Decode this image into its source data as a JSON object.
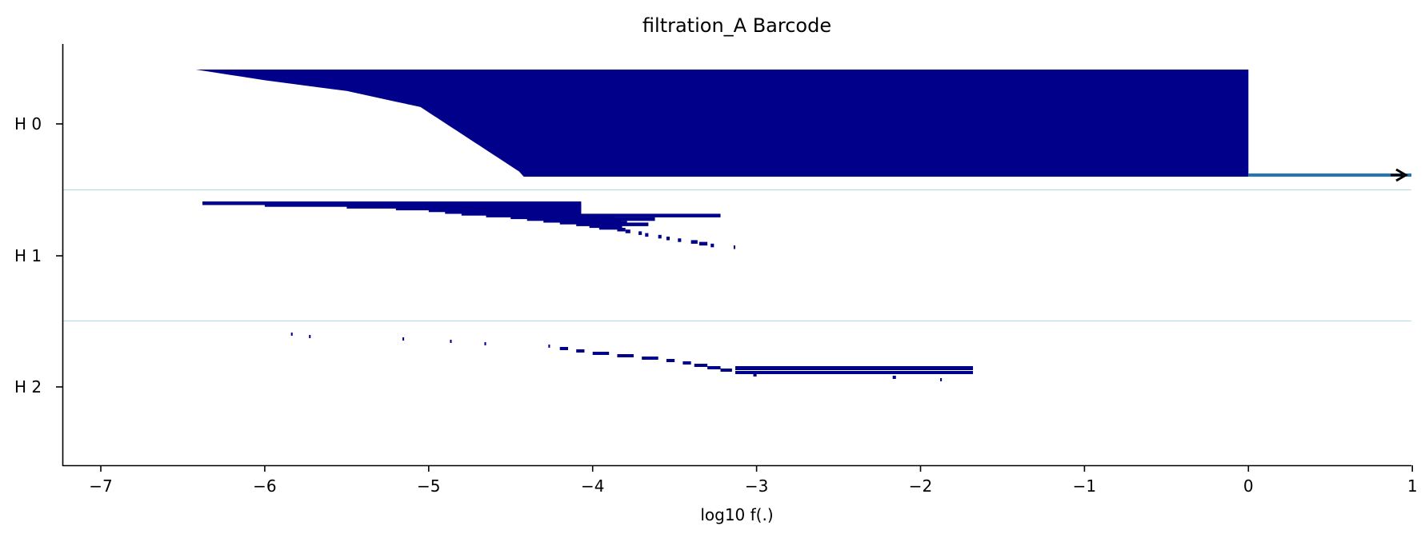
{
  "chart_data": {
    "type": "barcode",
    "title": "filtration_A Barcode",
    "xlabel": "log10 f(.)",
    "xlim": [
      -7.23,
      1.0
    ],
    "xticks": [
      -7,
      -6,
      -5,
      -4,
      -3,
      -2,
      -1,
      0,
      1
    ],
    "xtick_labels": [
      "−7",
      "−6",
      "−5",
      "−4",
      "−3",
      "−2",
      "−1",
      "0",
      "1"
    ],
    "dimension_labels": [
      "H 0",
      "H 1",
      "H 2"
    ],
    "bar_color": "#00008b",
    "infinite_bar_color": "#1f77b4",
    "separator_color": "#add8e6",
    "infinite_bar": {
      "dimension": "H 0",
      "birth": 0.0,
      "death": "inf"
    },
    "H0": {
      "bar_count_approx": 1000,
      "death": 0.0,
      "birth_profile": [
        [
          0.0,
          -6.42
        ],
        [
          0.1,
          -6.0
        ],
        [
          0.2,
          -5.5
        ],
        [
          0.35,
          -5.05
        ],
        [
          0.5,
          -4.9
        ],
        [
          0.7,
          -4.7
        ],
        [
          0.85,
          -4.55
        ],
        [
          0.95,
          -4.45
        ],
        [
          1.0,
          -4.42
        ]
      ]
    },
    "H1": {
      "bars": [
        {
          "birth": -6.38,
          "death": -4.07
        },
        {
          "birth": -6.0,
          "death": -4.07
        },
        {
          "birth": -5.5,
          "death": -4.07
        },
        {
          "birth": -5.2,
          "death": -4.07
        },
        {
          "birth": -5.0,
          "death": -4.07
        },
        {
          "birth": -4.9,
          "death": -4.07
        },
        {
          "birth": -4.8,
          "death": -4.07
        },
        {
          "birth": -4.65,
          "death": -3.22
        },
        {
          "birth": -4.5,
          "death": -3.87
        },
        {
          "birth": -4.4,
          "death": -3.62
        },
        {
          "birth": -4.3,
          "death": -3.83
        },
        {
          "birth": -4.2,
          "death": -3.79
        },
        {
          "birth": -4.1,
          "death": -3.66
        },
        {
          "birth": -4.02,
          "death": -3.83
        },
        {
          "birth": -3.96,
          "death": -3.82
        },
        {
          "birth": -3.85,
          "death": -3.8
        },
        {
          "birth": -3.8,
          "death": -3.77
        },
        {
          "birth": -3.72,
          "death": -3.7
        },
        {
          "birth": -3.68,
          "death": -3.66
        },
        {
          "birth": -3.6,
          "death": -3.58
        },
        {
          "birth": -3.55,
          "death": -3.53
        },
        {
          "birth": -3.48,
          "death": -3.46
        },
        {
          "birth": -3.4,
          "death": -3.36
        },
        {
          "birth": -3.35,
          "death": -3.3
        },
        {
          "birth": -3.28,
          "death": -3.26
        },
        {
          "birth": -3.14,
          "death": -3.13
        }
      ]
    },
    "H2": {
      "bars": [
        {
          "birth": -5.84,
          "death": -5.83
        },
        {
          "birth": -5.73,
          "death": -5.72
        },
        {
          "birth": -5.16,
          "death": -5.15
        },
        {
          "birth": -4.87,
          "death": -4.86
        },
        {
          "birth": -4.66,
          "death": -4.65
        },
        {
          "birth": -4.27,
          "death": -4.26
        },
        {
          "birth": -4.2,
          "death": -4.15
        },
        {
          "birth": -4.1,
          "death": -4.05
        },
        {
          "birth": -4.0,
          "death": -3.9
        },
        {
          "birth": -3.85,
          "death": -3.75
        },
        {
          "birth": -3.7,
          "death": -3.6
        },
        {
          "birth": -3.55,
          "death": -3.5
        },
        {
          "birth": -3.45,
          "death": -3.4
        },
        {
          "birth": -3.38,
          "death": -3.3
        },
        {
          "birth": -3.3,
          "death": -3.22
        },
        {
          "birth": -3.22,
          "death": -3.15
        },
        {
          "birth": -3.13,
          "death": -1.68
        },
        {
          "birth": -3.02,
          "death": -3.0
        },
        {
          "birth": -2.17,
          "death": -2.15
        },
        {
          "birth": -1.88,
          "death": -1.87
        }
      ]
    }
  }
}
